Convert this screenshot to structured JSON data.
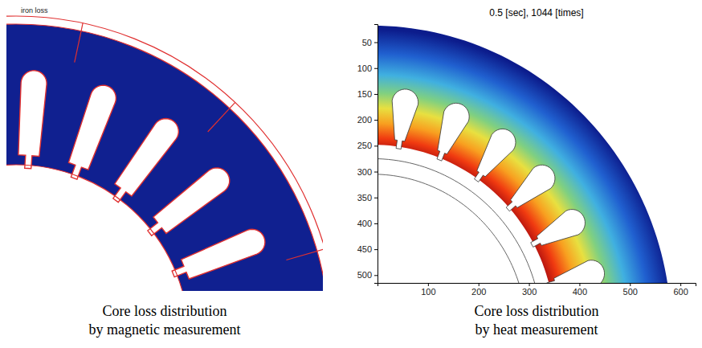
{
  "chart_data": [
    {
      "type": "image",
      "annotations": [
        "iron loss"
      ],
      "caption": [
        "Core loss distribution",
        "by magnetic measurement"
      ]
    },
    {
      "type": "heatmap",
      "title": "0.5 [sec], 1044 [times]",
      "xlim": [
        0,
        630
      ],
      "ylim": [
        515,
        15
      ],
      "xticks": [
        100,
        200,
        300,
        400,
        500,
        600
      ],
      "yticks": [
        50,
        100,
        150,
        200,
        250,
        300,
        350,
        400,
        450,
        500
      ],
      "caption": [
        "Core loss distribution",
        "by heat measurement"
      ]
    }
  ]
}
